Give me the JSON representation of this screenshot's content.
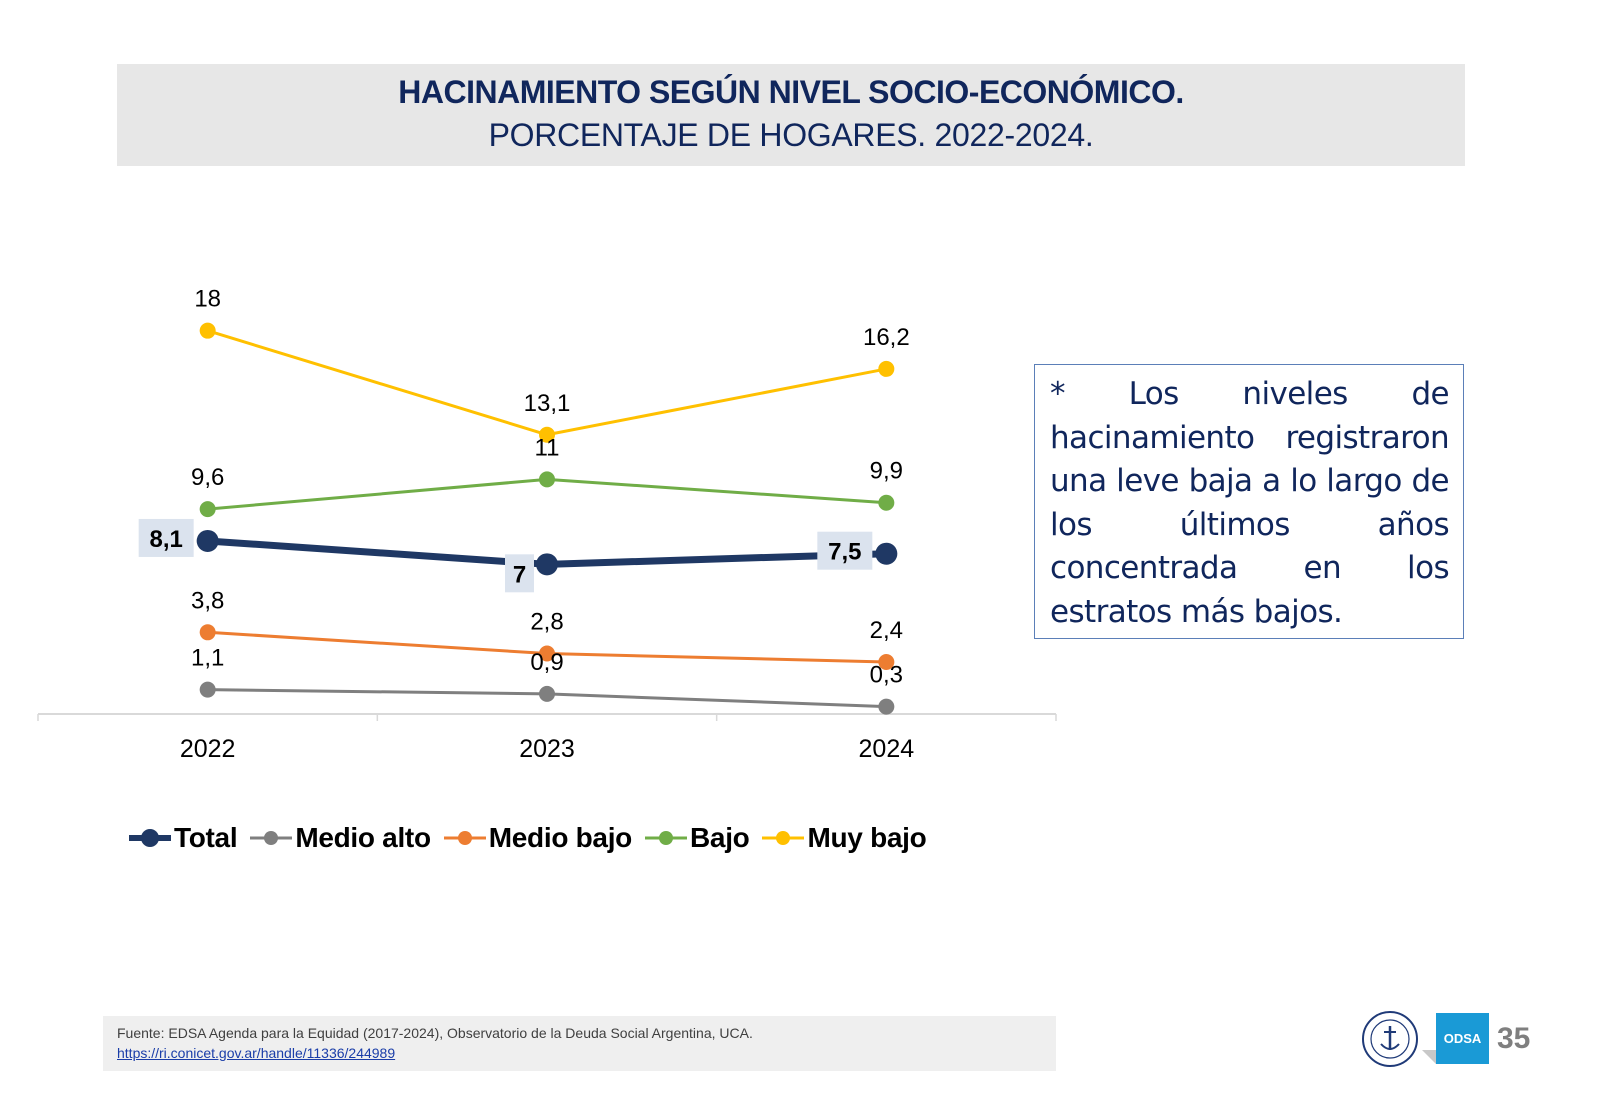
{
  "header": {
    "title": "HACINAMIENTO SEGÚN NIVEL SOCIO-ECONÓMICO.",
    "subtitle": "PORCENTAJE DE HOGARES. 2022-2024."
  },
  "chart_data": {
    "type": "line",
    "title": "HACINAMIENTO SEGÚN NIVEL SOCIO-ECONÓMICO.",
    "subtitle": "PORCENTAJE DE HOGARES. 2022-2024.",
    "xlabel": "",
    "ylabel": "",
    "categories": [
      "2022",
      "2023",
      "2024"
    ],
    "ylim": [
      0,
      18
    ],
    "grid": false,
    "legend_position": "bottom",
    "series": [
      {
        "name": "Total",
        "color": "#1f3864",
        "values": [
          8.1,
          7,
          7.5
        ],
        "labels": [
          "8,1",
          "7",
          "7,5"
        ],
        "bold": true
      },
      {
        "name": "Medio alto",
        "color": "#7f7f7f",
        "values": [
          1.1,
          0.9,
          0.3
        ],
        "labels": [
          "1,1",
          "0,9",
          "0,3"
        ]
      },
      {
        "name": "Medio bajo",
        "color": "#ed7d31",
        "values": [
          3.8,
          2.8,
          2.4
        ],
        "labels": [
          "3,8",
          "2,8",
          "2,4"
        ]
      },
      {
        "name": "Bajo",
        "color": "#70ad47",
        "values": [
          9.6,
          11,
          9.9
        ],
        "labels": [
          "9,6",
          "11",
          "9,9"
        ]
      },
      {
        "name": "Muy bajo",
        "color": "#ffc000",
        "values": [
          18,
          13.1,
          16.2
        ],
        "labels": [
          "18",
          "13,1",
          "16,2"
        ]
      }
    ]
  },
  "note": {
    "text": "* Los niveles de hacinamiento registraron una leve baja a lo largo de los últimos años concentrada en los estratos más bajos."
  },
  "footer": {
    "source": "Fuente: EDSA Agenda para la Equidad (2017-2024), Observatorio de la Deuda Social Argentina, UCA.",
    "link": "https://ri.conicet.gov.ar/handle/11336/244989",
    "odsa_label": "ODSA",
    "page_number": "35"
  }
}
